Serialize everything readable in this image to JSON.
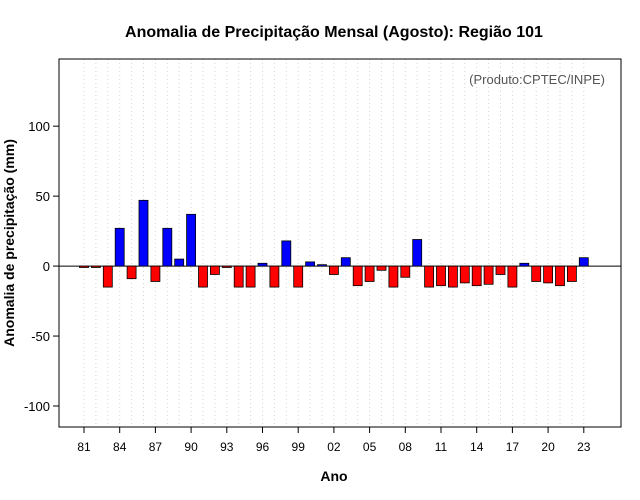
{
  "chart_data": {
    "type": "bar",
    "title": "Anomalia de Precipitação Mensal (Agosto): Região 101",
    "xlabel": "Ano",
    "ylabel": "Anomalia de precipitação (mm)",
    "credit": "(Produto:CPTEC/INPE)",
    "ylim": [
      -115,
      148
    ],
    "yticks": [
      -100,
      -50,
      0,
      50,
      100
    ],
    "ytick_labels": [
      "-100",
      "-50",
      "0",
      "50",
      "100"
    ],
    "grid": "vertical-dotted",
    "positive_color": "#0000ff",
    "negative_color": "#ff0000",
    "categories": [
      1981,
      1982,
      1983,
      1984,
      1985,
      1986,
      1987,
      1988,
      1989,
      1990,
      1991,
      1992,
      1993,
      1994,
      1995,
      1996,
      1997,
      1998,
      1999,
      2000,
      2001,
      2002,
      2003,
      2004,
      2005,
      2006,
      2007,
      2008,
      2009,
      2010,
      2011,
      2012,
      2013,
      2014,
      2015,
      2016,
      2017,
      2018,
      2019,
      2020,
      2021,
      2022,
      2023
    ],
    "values": [
      -1,
      -1,
      -15,
      27,
      -9,
      47,
      -11,
      27,
      5,
      37,
      -15,
      -6,
      -1,
      -15,
      -15,
      2,
      -15,
      18,
      -15,
      3,
      1,
      -6,
      6,
      -14,
      -11,
      -3,
      -15,
      -8,
      19,
      -15,
      -14,
      -15,
      -12,
      -14,
      -13,
      -6,
      -15,
      2,
      -11,
      -12,
      -14,
      -11,
      6
    ],
    "xtick_years": [
      1981,
      1984,
      1987,
      1990,
      1993,
      1996,
      1999,
      2002,
      2005,
      2008,
      2011,
      2014,
      2017,
      2020,
      2023
    ],
    "xtick_labels": [
      "81",
      "84",
      "87",
      "90",
      "93",
      "96",
      "99",
      "02",
      "05",
      "08",
      "11",
      "14",
      "17",
      "20",
      "23"
    ]
  }
}
